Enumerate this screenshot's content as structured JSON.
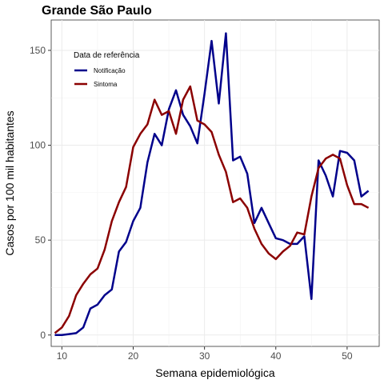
{
  "chart_data": {
    "type": "line",
    "title": "Grande São Paulo",
    "xlabel": "Semana epidemiológica",
    "ylabel": "Casos por 100 mil habitantes",
    "xlim": [
      8.5,
      54.5
    ],
    "ylim": [
      -6,
      166
    ],
    "xticks": [
      10,
      20,
      30,
      40,
      50
    ],
    "yticks": [
      0,
      50,
      100,
      150
    ],
    "grid": true,
    "legend": {
      "title": "Data de referência",
      "placement": "top-left"
    },
    "series": [
      {
        "name": "Notificação",
        "color": "#00008B",
        "x": [
          9,
          10,
          11,
          12,
          13,
          14,
          15,
          16,
          17,
          18,
          19,
          20,
          21,
          22,
          23,
          24,
          25,
          26,
          27,
          28,
          29,
          30,
          31,
          32,
          33,
          34,
          35,
          36,
          37,
          38,
          39,
          40,
          41,
          42,
          43,
          44,
          45,
          46,
          47,
          48,
          49,
          50,
          51,
          52,
          53
        ],
        "y": [
          0,
          0,
          0.5,
          1,
          4,
          14,
          16,
          21,
          24,
          44,
          49,
          60,
          67,
          91,
          106,
          100,
          119,
          129,
          116,
          110,
          101,
          127,
          155,
          122,
          159,
          92,
          94,
          85,
          59,
          67,
          59,
          51,
          50,
          48,
          48,
          52,
          19,
          92,
          84,
          73,
          97,
          96,
          92,
          73,
          76
        ]
      },
      {
        "name": "Sintoma",
        "color": "#8B0000",
        "x": [
          9,
          10,
          11,
          12,
          13,
          14,
          15,
          16,
          17,
          18,
          19,
          20,
          21,
          22,
          23,
          24,
          25,
          26,
          27,
          28,
          29,
          30,
          31,
          32,
          33,
          34,
          35,
          36,
          37,
          38,
          39,
          40,
          41,
          42,
          43,
          44,
          45,
          46,
          47,
          48,
          49,
          50,
          51,
          52,
          53
        ],
        "y": [
          1,
          4,
          10,
          21,
          27,
          32,
          35,
          45,
          60,
          70,
          78,
          99,
          106,
          111,
          124,
          116,
          118,
          106,
          124,
          131,
          113,
          111,
          107,
          95,
          86,
          70,
          72,
          67,
          56,
          48,
          43,
          40,
          44,
          47,
          54,
          53,
          73,
          88,
          93,
          95,
          93,
          79,
          69,
          69,
          67
        ]
      }
    ]
  }
}
